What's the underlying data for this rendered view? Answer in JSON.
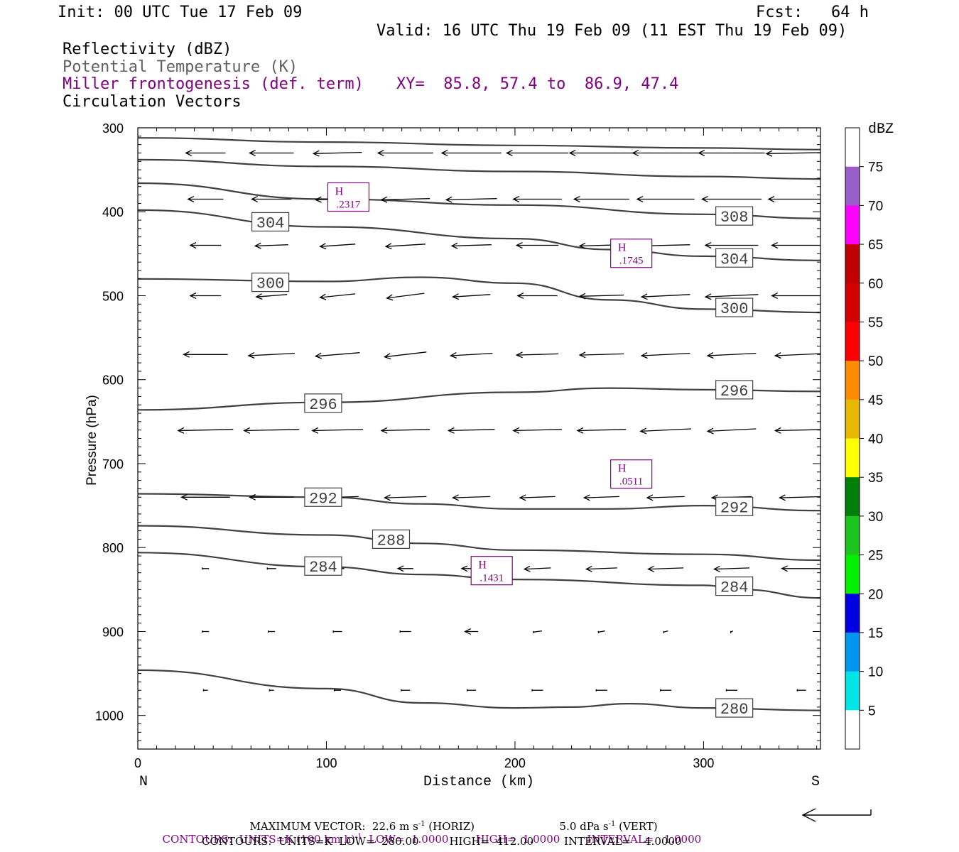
{
  "header": {
    "init": "Init: 00 UTC Tue 17 Feb 09",
    "fcst": "Fcst:   64 h",
    "valid": "Valid: 16 UTC Thu 19 Feb 09 (11 EST Thu 19 Feb 09)",
    "field1": "Reflectivity (dBZ)",
    "field2": "Potential Temperature (K)",
    "field3": "Miller frontogenesis (def. term)",
    "xy": "XY=  85.8, 57.4 to  86.9, 47.4",
    "field4": "Circulation Vectors"
  },
  "colors": {
    "purple": "#800080",
    "theta_gray": "#404040"
  },
  "chart_data": {
    "type": "cross-section",
    "x_axis": {
      "label": "Distance (km)",
      "range": [
        0,
        362
      ],
      "ticks": [
        "0",
        "100",
        "200",
        "300"
      ],
      "left_end": "N",
      "right_end": "S"
    },
    "y_axis": {
      "label": "Pressure (hPa)",
      "range": [
        300,
        1040
      ],
      "scale": "linear, inverted",
      "ticks": [
        "300",
        "400",
        "500",
        "600",
        "700",
        "800",
        "900",
        "1000"
      ]
    },
    "colorbar": {
      "title": "dBZ",
      "labels": [
        "75",
        "70",
        "65",
        "60",
        "55",
        "50",
        "45",
        "40",
        "35",
        "30",
        "25",
        "20",
        "15",
        "10",
        "5"
      ],
      "colors": [
        "#ffffff",
        "#9a5ecb",
        "#ff00ff",
        "#c00000",
        "#d40000",
        "#ff0000",
        "#ff8c00",
        "#e6b800",
        "#ffff00",
        "#00800a",
        "#1ec41e",
        "#00f000",
        "#0000e0",
        "#0096f0",
        "#00e6e6",
        "#ffffff"
      ]
    },
    "theta_contours": [
      {
        "value": "",
        "points": [
          [
            0,
            312
          ],
          [
            100,
            317
          ],
          [
            200,
            321
          ],
          [
            300,
            324
          ],
          [
            362,
            326
          ]
        ]
      },
      {
        "value": "",
        "points": [
          [
            0,
            338
          ],
          [
            100,
            346
          ],
          [
            200,
            352
          ],
          [
            300,
            358
          ],
          [
            362,
            361
          ]
        ]
      },
      {
        "value": "308",
        "points": [
          [
            0,
            366
          ],
          [
            100,
            385
          ],
          [
            200,
            392
          ],
          [
            300,
            403
          ],
          [
            362,
            408
          ]
        ]
      },
      {
        "value": "304",
        "points": [
          [
            0,
            398
          ],
          [
            100,
            418
          ],
          [
            200,
            432
          ],
          [
            250,
            445
          ],
          [
            300,
            453
          ],
          [
            362,
            458
          ]
        ]
      },
      {
        "value": "300",
        "points": [
          [
            0,
            480
          ],
          [
            100,
            483
          ],
          [
            150,
            478
          ],
          [
            200,
            485
          ],
          [
            250,
            505
          ],
          [
            300,
            516
          ],
          [
            362,
            520
          ]
        ]
      },
      {
        "value": "296",
        "points": [
          [
            0,
            636
          ],
          [
            100,
            627
          ],
          [
            200,
            615
          ],
          [
            250,
            610
          ],
          [
            300,
            612
          ],
          [
            362,
            614
          ]
        ]
      },
      {
        "value": "292",
        "points": [
          [
            0,
            736
          ],
          [
            100,
            740
          ],
          [
            150,
            748
          ],
          [
            200,
            754
          ],
          [
            250,
            754
          ],
          [
            300,
            750
          ],
          [
            362,
            756
          ]
        ]
      },
      {
        "value": "288",
        "points": [
          [
            0,
            774
          ],
          [
            100,
            785
          ],
          [
            150,
            795
          ],
          [
            200,
            803
          ],
          [
            300,
            808
          ],
          [
            362,
            815
          ]
        ]
      },
      {
        "value": "284",
        "points": [
          [
            0,
            806
          ],
          [
            100,
            823
          ],
          [
            150,
            832
          ],
          [
            200,
            838
          ],
          [
            300,
            845
          ],
          [
            320,
            850
          ],
          [
            362,
            860
          ]
        ]
      },
      {
        "value": "280",
        "points": [
          [
            0,
            946
          ],
          [
            100,
            968
          ],
          [
            150,
            985
          ],
          [
            200,
            991
          ],
          [
            230,
            990
          ],
          [
            260,
            986
          ],
          [
            300,
            991
          ],
          [
            362,
            994
          ]
        ]
      }
    ],
    "theta_labels": [
      {
        "text": "308",
        "x": 308,
        "p": 405
      },
      {
        "text": "304",
        "x": 62,
        "p": 412
      },
      {
        "text": "304",
        "x": 308,
        "p": 455
      },
      {
        "text": "300",
        "x": 62,
        "p": 484
      },
      {
        "text": "300",
        "x": 308,
        "p": 514
      },
      {
        "text": "296",
        "x": 90,
        "p": 628
      },
      {
        "text": "296",
        "x": 308,
        "p": 612
      },
      {
        "text": "292",
        "x": 90,
        "p": 740
      },
      {
        "text": "292",
        "x": 308,
        "p": 751
      },
      {
        "text": "288",
        "x": 126,
        "p": 790
      },
      {
        "text": "284",
        "x": 90,
        "p": 822
      },
      {
        "text": "284",
        "x": 308,
        "p": 846
      },
      {
        "text": "280",
        "x": 308,
        "p": 991
      }
    ],
    "frontogenesis_highs": [
      {
        "label": "H",
        "value": ".2317",
        "x": 103,
        "p": 385
      },
      {
        "label": "H",
        "value": ".1745",
        "x": 253,
        "p": 452
      },
      {
        "label": "H",
        "value": ".0511",
        "x": 253,
        "p": 715
      },
      {
        "label": "H",
        "value": ".1431",
        "x": 179,
        "p": 830
      }
    ],
    "vectors": [
      {
        "p": 330,
        "items": [
          [
            36,
            -18,
            0
          ],
          [
            71,
            -20,
            0
          ],
          [
            106,
            -22,
            1
          ],
          [
            142,
            -25,
            0
          ],
          [
            177,
            -27,
            0
          ],
          [
            212,
            -28,
            0
          ],
          [
            246,
            -29,
            0
          ],
          [
            280,
            -30,
            0
          ],
          [
            315,
            -30,
            0
          ],
          [
            352,
            -32,
            1
          ]
        ]
      },
      {
        "p": 385,
        "items": [
          [
            36,
            -16,
            0
          ],
          [
            71,
            -18,
            0
          ],
          [
            106,
            -20,
            1
          ],
          [
            142,
            -22,
            1
          ],
          [
            177,
            -23,
            1
          ],
          [
            212,
            -22,
            0
          ],
          [
            246,
            -25,
            0
          ],
          [
            280,
            -26,
            0
          ],
          [
            315,
            -27,
            0
          ],
          [
            352,
            -30,
            0
          ]
        ]
      },
      {
        "p": 440,
        "items": [
          [
            36,
            -14,
            0
          ],
          [
            71,
            -15,
            1
          ],
          [
            106,
            -16,
            2
          ],
          [
            142,
            -18,
            2
          ],
          [
            177,
            -18,
            1
          ],
          [
            212,
            -19,
            0
          ],
          [
            246,
            -20,
            1
          ],
          [
            280,
            -22,
            1
          ],
          [
            315,
            -24,
            0
          ],
          [
            352,
            -27,
            0
          ]
        ]
      },
      {
        "p": 500,
        "items": [
          [
            36,
            -14,
            0
          ],
          [
            71,
            -14,
            2
          ],
          [
            106,
            -16,
            3
          ],
          [
            142,
            -17,
            4
          ],
          [
            177,
            -17,
            2
          ],
          [
            212,
            -18,
            0
          ],
          [
            246,
            -20,
            1
          ],
          [
            280,
            -22,
            2
          ],
          [
            315,
            -24,
            2
          ],
          [
            352,
            -27,
            0
          ]
        ]
      },
      {
        "p": 570,
        "items": [
          [
            36,
            -20,
            0
          ],
          [
            71,
            -21,
            2
          ],
          [
            106,
            -20,
            3
          ],
          [
            142,
            -19,
            4
          ],
          [
            177,
            -19,
            2
          ],
          [
            212,
            -19,
            1
          ],
          [
            246,
            -20,
            1
          ],
          [
            280,
            -22,
            2
          ],
          [
            315,
            -22,
            2
          ],
          [
            352,
            -24,
            2
          ]
        ]
      },
      {
        "p": 660,
        "items": [
          [
            36,
            -25,
            1
          ],
          [
            71,
            -25,
            1
          ],
          [
            106,
            -23,
            1
          ],
          [
            142,
            -22,
            1
          ],
          [
            177,
            -21,
            1
          ],
          [
            212,
            -22,
            1
          ],
          [
            246,
            -22,
            1
          ],
          [
            280,
            -23,
            2
          ],
          [
            315,
            -22,
            2
          ],
          [
            352,
            -24,
            1
          ]
        ]
      },
      {
        "p": 740,
        "items": [
          [
            36,
            -22,
            0
          ],
          [
            71,
            -20,
            0
          ],
          [
            106,
            -19,
            1
          ],
          [
            142,
            -19,
            1
          ],
          [
            177,
            -17,
            1
          ],
          [
            212,
            -16,
            1
          ],
          [
            246,
            -16,
            1
          ],
          [
            280,
            -17,
            1
          ],
          [
            315,
            -18,
            1
          ],
          [
            352,
            -20,
            1
          ]
        ]
      },
      {
        "p": 825,
        "items": [
          [
            36,
            -3,
            0
          ],
          [
            71,
            -4,
            0
          ],
          [
            106,
            -6,
            0
          ],
          [
            142,
            -7,
            0
          ],
          [
            177,
            -9,
            0
          ],
          [
            212,
            -12,
            1
          ],
          [
            246,
            -14,
            1
          ],
          [
            280,
            -16,
            1
          ],
          [
            315,
            -16,
            1
          ],
          [
            352,
            -18,
            0
          ]
        ]
      },
      {
        "p": 900,
        "items": [
          [
            36,
            -3,
            0
          ],
          [
            71,
            -3,
            0
          ],
          [
            106,
            -4,
            0
          ],
          [
            142,
            -5,
            0
          ],
          [
            177,
            -6,
            0
          ],
          [
            212,
            -4,
            1
          ],
          [
            246,
            -3,
            1
          ],
          [
            280,
            -2,
            1
          ],
          [
            315,
            -1,
            1
          ]
        ]
      },
      {
        "p": 970,
        "items": [
          [
            36,
            -2,
            0
          ],
          [
            71,
            -2,
            0
          ],
          [
            106,
            -3,
            0
          ],
          [
            142,
            -4,
            0
          ],
          [
            177,
            -4,
            0
          ],
          [
            212,
            -5,
            0
          ],
          [
            246,
            -5,
            0
          ],
          [
            280,
            -5,
            0
          ],
          [
            315,
            -5,
            0
          ],
          [
            352,
            -4,
            0
          ]
        ]
      }
    ]
  },
  "footer": {
    "max_vector": "MAXIMUM VECTOR:  22.6 m s",
    "max_vector_sup": "-1",
    "max_vector_horiz": " (HORIZ)",
    "vert": "5.0 dPa s",
    "vert_sup": "-1",
    "vert_tail": " (VERT)",
    "contours1_a": "CONTOURS:  UNITS=K (100 km h)",
    "contours1_sup": "-1",
    "contours1_b": "  LOW=  1.0000        HIGH=  1.0000        INTERVAL=   1.0000",
    "contours2": "CONTOURS:  UNITS=K  LOW=  280.00         HIGH=  412.00         INTERVAL=    4.0000"
  }
}
